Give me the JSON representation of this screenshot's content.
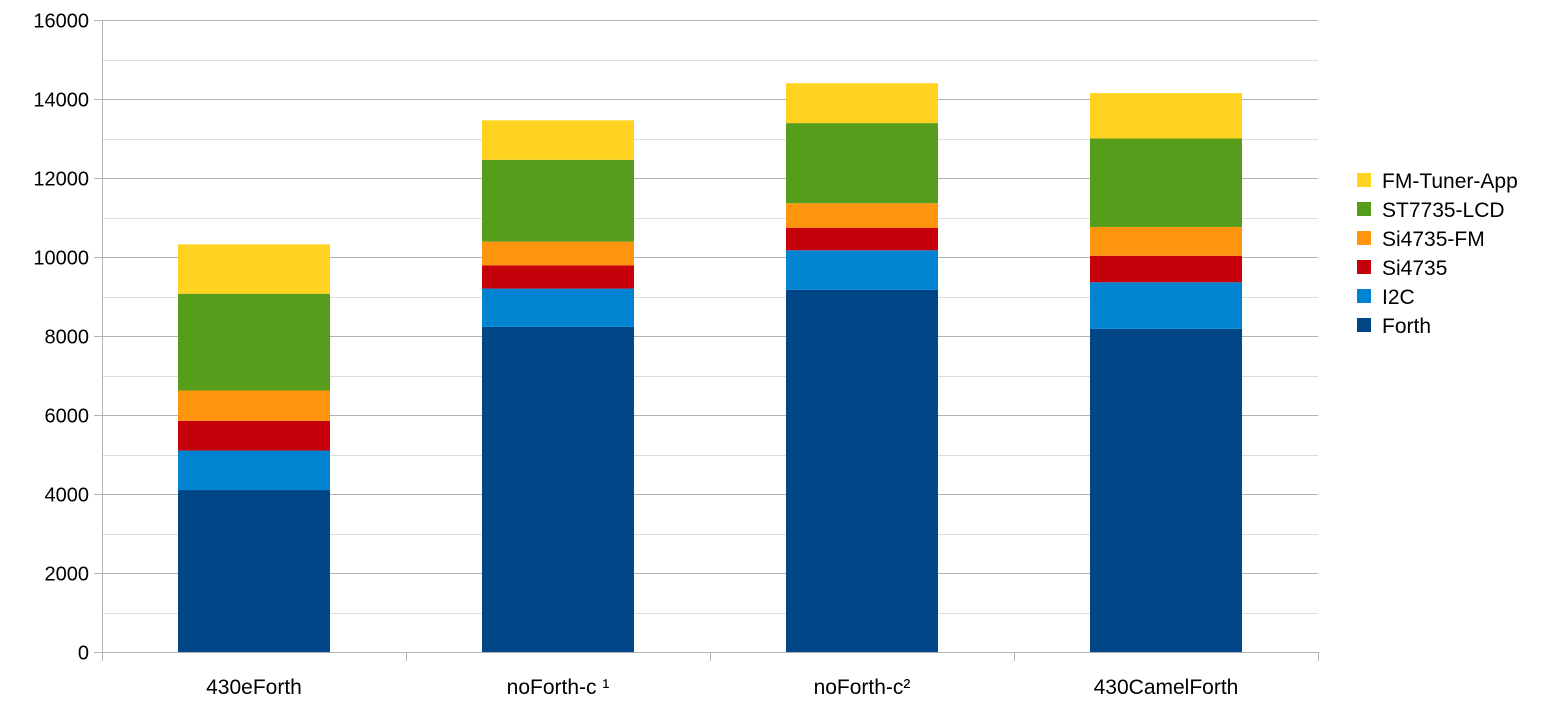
{
  "chart_data": {
    "type": "bar",
    "stacked": true,
    "categories": [
      "430eForth",
      "noForth-c ¹",
      "noForth-c²",
      "430CamelForth"
    ],
    "series": [
      {
        "name": "Forth",
        "color": "#004586",
        "values": [
          4100,
          8230,
          9170,
          8180
        ]
      },
      {
        "name": "I2C",
        "color": "#0084d1",
        "values": [
          1000,
          970,
          1000,
          1180
        ]
      },
      {
        "name": "Si4735",
        "color": "#c5000b",
        "values": [
          750,
          590,
          570,
          670
        ]
      },
      {
        "name": "Si4735-FM",
        "color": "#ff950e",
        "values": [
          770,
          600,
          620,
          730
        ]
      },
      {
        "name": "ST7735-LCD",
        "color": "#579d1c",
        "values": [
          2450,
          2070,
          2030,
          2240
        ]
      },
      {
        "name": "FM-Tuner-App",
        "color": "#ffd320",
        "values": [
          1250,
          1000,
          1010,
          1150
        ]
      }
    ],
    "ylim": [
      0,
      16000
    ],
    "y_ticks": [
      "0",
      "2000",
      "4000",
      "6000",
      "8000",
      "10000",
      "12000",
      "14000",
      "16000"
    ],
    "y_major_step": 2000,
    "y_minor_step": 1000,
    "grid": true,
    "legend_position": "right",
    "legend_order": [
      "FM-Tuner-App",
      "ST7735-LCD",
      "Si4735-FM",
      "Si4735",
      "I2C",
      "Forth"
    ],
    "title": "",
    "xlabel": "",
    "ylabel": ""
  }
}
